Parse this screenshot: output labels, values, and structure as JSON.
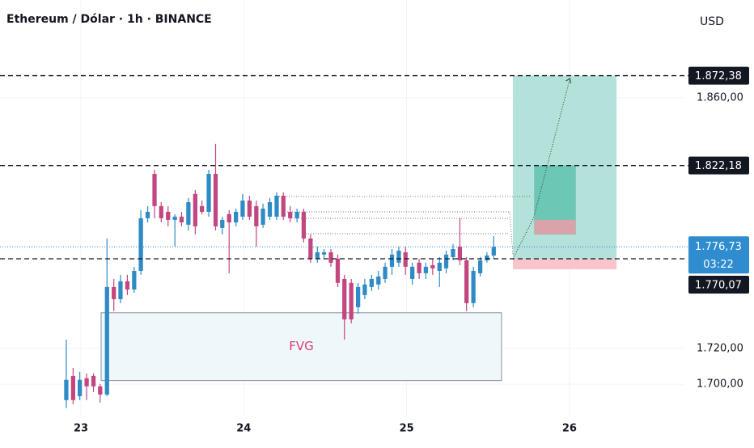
{
  "chart_data": {
    "type": "candlestick",
    "title": "Ethereum / Dólar · 1h · BINANCE",
    "currency": "USD",
    "colors": {
      "up": "#2e8bc6",
      "down": "#c2467f"
    },
    "x": [
      22.91,
      22.952,
      22.993,
      23.035,
      23.077,
      23.118,
      23.16,
      23.202,
      23.243,
      23.285,
      23.327,
      23.368,
      23.41,
      23.452,
      23.493,
      23.535,
      23.577,
      23.618,
      23.66,
      23.702,
      23.743,
      23.785,
      23.827,
      23.868,
      23.91,
      23.952,
      23.993,
      24.035,
      24.077,
      24.118,
      24.16,
      24.202,
      24.243,
      24.285,
      24.327,
      24.368,
      24.41,
      24.452,
      24.493,
      24.535,
      24.577,
      24.618,
      24.66,
      24.702,
      24.743,
      24.785,
      24.827,
      24.868,
      24.91,
      24.952,
      24.993,
      25.035,
      25.077,
      25.118,
      25.16,
      25.202,
      25.243,
      25.285,
      25.327,
      25.368,
      25.41,
      25.452,
      25.493,
      25.535
    ],
    "open": [
      1691.1,
      1704.6,
      1693.3,
      1703.3,
      1704.6,
      1698.8,
      1694.2,
      1754.3,
      1747.5,
      1757.5,
      1752.9,
      1763.3,
      1792.7,
      1817.5,
      1799.5,
      1796.3,
      1791.8,
      1793.6,
      1789.1,
      1806.3,
      1799.5,
      1796.3,
      1817.5,
      1787.3,
      1795.0,
      1790.4,
      1793.6,
      1802.6,
      1799.5,
      1789.1,
      1793.6,
      1793.6,
      1805.3,
      1796.3,
      1792.7,
      1796.3,
      1781.4,
      1770.1,
      1772.4,
      1773.7,
      1770.1,
      1758.8,
      1756.6,
      1743.0,
      1749.8,
      1754.3,
      1755.7,
      1758.8,
      1765.6,
      1767.9,
      1773.7,
      1758.8,
      1767.9,
      1762.0,
      1766.5,
      1763.3,
      1764.7,
      1771.0,
      1776.9,
      1769.2,
      1745.3,
      1762.0,
      1769.2,
      1771.9
    ],
    "high": [
      1724.9,
      1709.1,
      1706.9,
      1706.0,
      1706.0,
      1700.1,
      1781.4,
      1758.8,
      1761.1,
      1761.1,
      1765.6,
      1797.2,
      1799.5,
      1819.8,
      1801.7,
      1799.5,
      1795.0,
      1796.3,
      1804.0,
      1808.5,
      1802.6,
      1819.8,
      1834.3,
      1793.6,
      1797.2,
      1798.1,
      1806.3,
      1805.3,
      1802.6,
      1800.8,
      1804.0,
      1807.2,
      1807.2,
      1799.5,
      1798.1,
      1798.1,
      1783.7,
      1776.9,
      1775.5,
      1775.5,
      1772.4,
      1761.1,
      1758.8,
      1756.6,
      1758.8,
      1761.1,
      1763.3,
      1767.9,
      1775.5,
      1776.9,
      1776.9,
      1767.9,
      1770.1,
      1767.9,
      1770.1,
      1771.0,
      1774.6,
      1778.3,
      1792.7,
      1771.0,
      1765.6,
      1771.0,
      1773.7,
      1782.8
    ],
    "low": [
      1686.6,
      1688.8,
      1691.1,
      1691.1,
      1695.6,
      1689.7,
      1693.3,
      1740.8,
      1745.3,
      1749.8,
      1751.1,
      1761.1,
      1790.4,
      1792.7,
      1790.4,
      1788.2,
      1776.9,
      1788.2,
      1785.9,
      1783.7,
      1795.0,
      1793.6,
      1785.9,
      1783.7,
      1762.0,
      1788.2,
      1791.8,
      1791.8,
      1776.9,
      1787.3,
      1791.8,
      1791.8,
      1791.8,
      1790.4,
      1790.4,
      1779.2,
      1767.9,
      1767.9,
      1770.1,
      1765.6,
      1754.3,
      1724.9,
      1734.0,
      1739.4,
      1747.5,
      1752.0,
      1752.9,
      1756.6,
      1761.1,
      1765.6,
      1761.1,
      1755.7,
      1758.8,
      1758.8,
      1761.1,
      1754.3,
      1762.0,
      1769.2,
      1766.5,
      1740.8,
      1743.0,
      1760.2,
      1767.9,
      1770.1
    ],
    "close": [
      1702.4,
      1691.1,
      1702.4,
      1698.8,
      1698.8,
      1694.2,
      1754.3,
      1747.5,
      1757.5,
      1752.9,
      1763.3,
      1792.7,
      1796.3,
      1799.5,
      1792.7,
      1791.8,
      1793.6,
      1790.4,
      1801.7,
      1788.2,
      1796.3,
      1817.5,
      1788.2,
      1791.8,
      1790.4,
      1796.3,
      1802.6,
      1793.6,
      1788.2,
      1798.1,
      1801.7,
      1805.3,
      1793.6,
      1792.7,
      1796.3,
      1781.4,
      1770.1,
      1773.7,
      1773.7,
      1767.9,
      1756.6,
      1736.2,
      1736.2,
      1754.3,
      1755.7,
      1758.8,
      1760.2,
      1765.6,
      1772.4,
      1774.6,
      1765.6,
      1765.6,
      1762.0,
      1765.6,
      1764.7,
      1767.9,
      1772.4,
      1775.5,
      1769.2,
      1745.3,
      1763.3,
      1769.2,
      1771.9,
      1776.73
    ],
    "xlim": [
      22.503,
      26.701
    ],
    "ylim": [
      1681.96,
      1914.66
    ],
    "xticks": [
      23,
      24,
      25,
      26
    ],
    "yticks": [
      {
        "value": 1700,
        "label": "1.700,00"
      },
      {
        "value": 1720,
        "label": "1.720,00"
      },
      {
        "value": 1860,
        "label": "1.860,00"
      }
    ],
    "levels": [
      {
        "value": 1872.38,
        "label": "1.872,38"
      },
      {
        "value": 1822.18,
        "label": "1.822,18"
      },
      {
        "value": 1770.07,
        "label": "1.770,07"
      }
    ],
    "current": {
      "value": 1776.73,
      "label": "1.776,73",
      "countdown": "03:22"
    },
    "fvg": {
      "label": "FVG",
      "x": [
        23.124,
        25.583
      ],
      "top": 1739.9,
      "bottom": 1702.0
    },
    "position": {
      "x": [
        25.653,
        26.289
      ],
      "entry": 1770.07,
      "target": 1872.38,
      "stop": 1764.2,
      "zones": [
        {
          "x": [
            25.784,
            26.038
          ],
          "top": 1822.18,
          "bottom": 1791.8,
          "color": "#6cc7b4"
        },
        {
          "x": [
            25.784,
            26.038
          ],
          "top": 1791.8,
          "bottom": 1783.7,
          "color": "#d9a3a9"
        }
      ]
    },
    "projection": {
      "x": [
        25.653,
        25.779,
        26.003
      ],
      "y": [
        1770.07,
        1792.7,
        1870.8
      ]
    }
  }
}
